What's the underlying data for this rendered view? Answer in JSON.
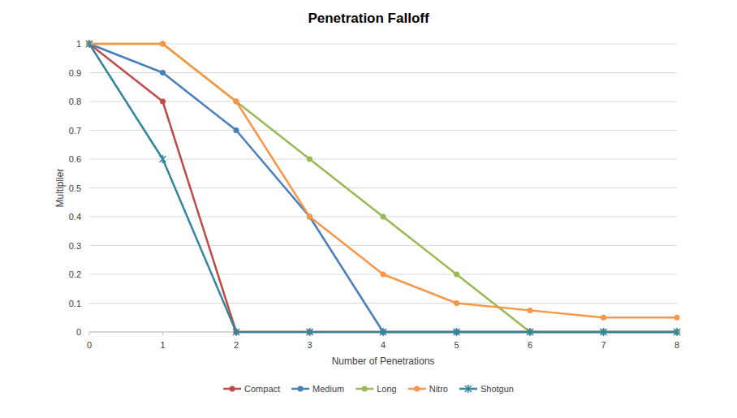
{
  "chart_data": {
    "type": "line",
    "title": "Penetration Falloff",
    "x_label": "Number of Penetrations",
    "y_label": "Multiplier",
    "x": [
      0,
      1,
      2,
      3,
      4,
      5,
      6,
      7,
      8
    ],
    "xlim": [
      0,
      8
    ],
    "xticks": [
      0,
      1,
      2,
      3,
      4,
      5,
      6,
      7,
      8
    ],
    "ylim": [
      0,
      1
    ],
    "yticks": [
      0,
      0.1,
      0.2,
      0.3,
      0.4,
      0.5,
      0.6,
      0.7,
      0.8,
      0.9,
      1
    ],
    "grid": true,
    "legend": "bottom",
    "series": [
      {
        "name": "Compact",
        "color": "#be4b48",
        "marker": "circle",
        "values": [
          1,
          0.8,
          0,
          0,
          0,
          0,
          0,
          0,
          0
        ]
      },
      {
        "name": "Medium",
        "color": "#4a7ebb",
        "marker": "circle",
        "values": [
          1,
          0.9,
          0.7,
          0.4,
          0,
          0,
          0,
          0,
          0
        ]
      },
      {
        "name": "Long",
        "color": "#98b954",
        "marker": "circle",
        "values": [
          1,
          1,
          0.8,
          0.6,
          0.4,
          0.2,
          0,
          0,
          0
        ]
      },
      {
        "name": "Nitro",
        "color": "#f79646",
        "marker": "circle",
        "values": [
          1,
          1,
          0.8,
          0.4,
          0.2,
          0.1,
          0.075,
          0.05,
          0.05
        ]
      },
      {
        "name": "Shotgun",
        "color": "#31859c",
        "marker": "x",
        "values": [
          1,
          0.6,
          0,
          0,
          0,
          0,
          0,
          0,
          0
        ]
      }
    ]
  }
}
